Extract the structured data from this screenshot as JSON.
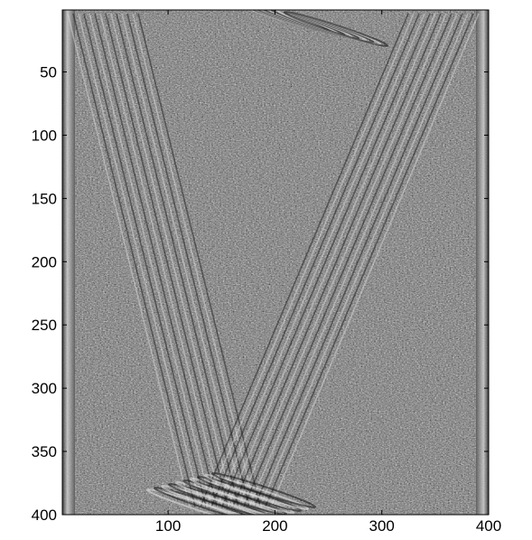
{
  "chart_data": {
    "type": "heatmap",
    "colormap": "gray",
    "x_ticks": [
      100,
      200,
      300,
      400
    ],
    "y_ticks": [
      50,
      100,
      150,
      200,
      250,
      300,
      350,
      400
    ],
    "xlim": [
      1,
      400
    ],
    "ylim": [
      1,
      400
    ],
    "y_direction": "top-to-bottom",
    "grid": false,
    "legend": "none"
  }
}
